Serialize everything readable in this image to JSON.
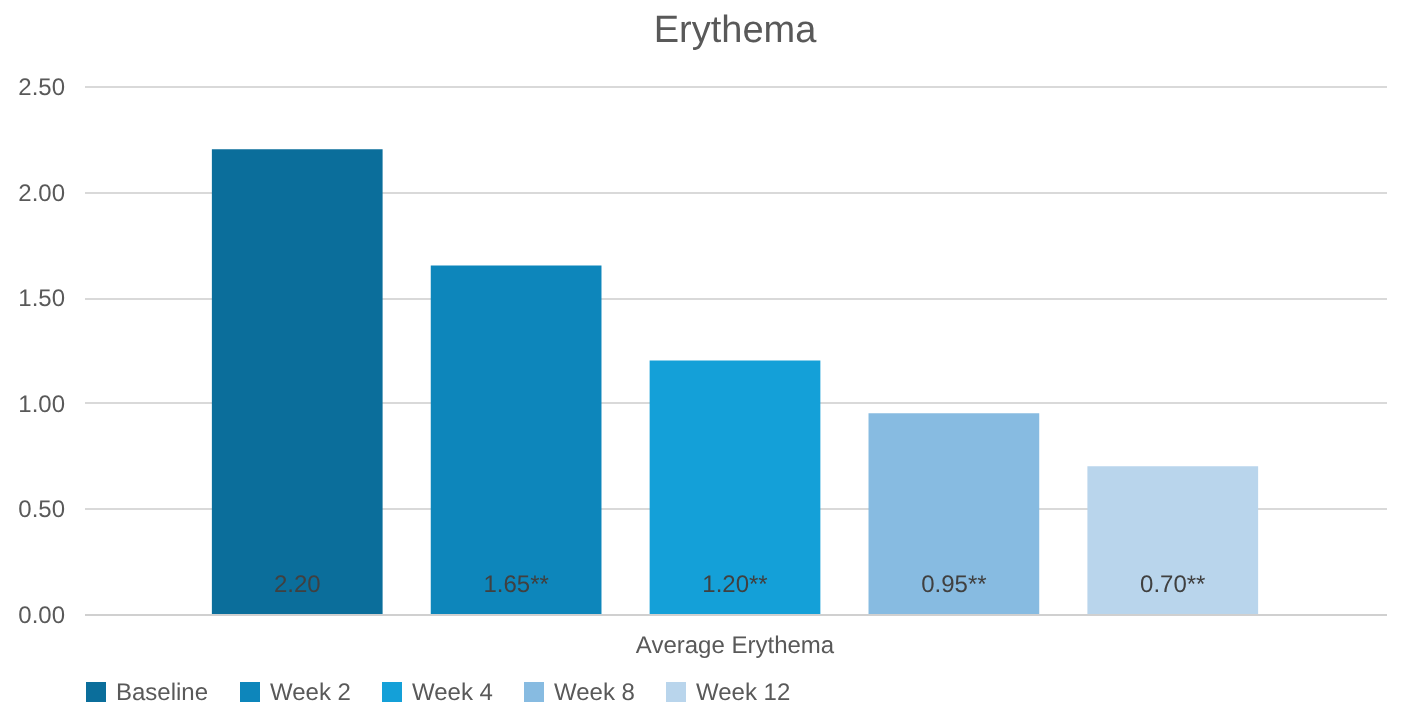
{
  "chart_data": {
    "type": "bar",
    "title": "Erythema",
    "categories": [
      "Average Erythema"
    ],
    "series": [
      {
        "name": "Baseline",
        "color": "#0b6e9b",
        "values": [
          2.2
        ],
        "value_labels": [
          "2.20"
        ]
      },
      {
        "name": "Week 2",
        "color": "#0d86bb",
        "values": [
          1.65
        ],
        "value_labels": [
          "1.65**"
        ]
      },
      {
        "name": "Week 4",
        "color": "#14a0d8",
        "values": [
          1.2
        ],
        "value_labels": [
          "1.20**"
        ]
      },
      {
        "name": "Week 8",
        "color": "#87bbe1",
        "values": [
          0.95
        ],
        "value_labels": [
          "0.95**"
        ]
      },
      {
        "name": "Week 12",
        "color": "#b9d5ec",
        "values": [
          0.7
        ],
        "value_labels": [
          "0.70**"
        ]
      }
    ],
    "ylim": [
      0,
      2.5
    ],
    "yticks": [
      {
        "value": 0,
        "label": "0.00"
      },
      {
        "value": 0.5,
        "label": "0.50"
      },
      {
        "value": 1,
        "label": "1.00"
      },
      {
        "value": 1.5,
        "label": "1.50"
      },
      {
        "value": 2,
        "label": "2.00"
      },
      {
        "value": 2.5,
        "label": "2.50"
      }
    ],
    "grid": "y",
    "legend": "bottom"
  }
}
